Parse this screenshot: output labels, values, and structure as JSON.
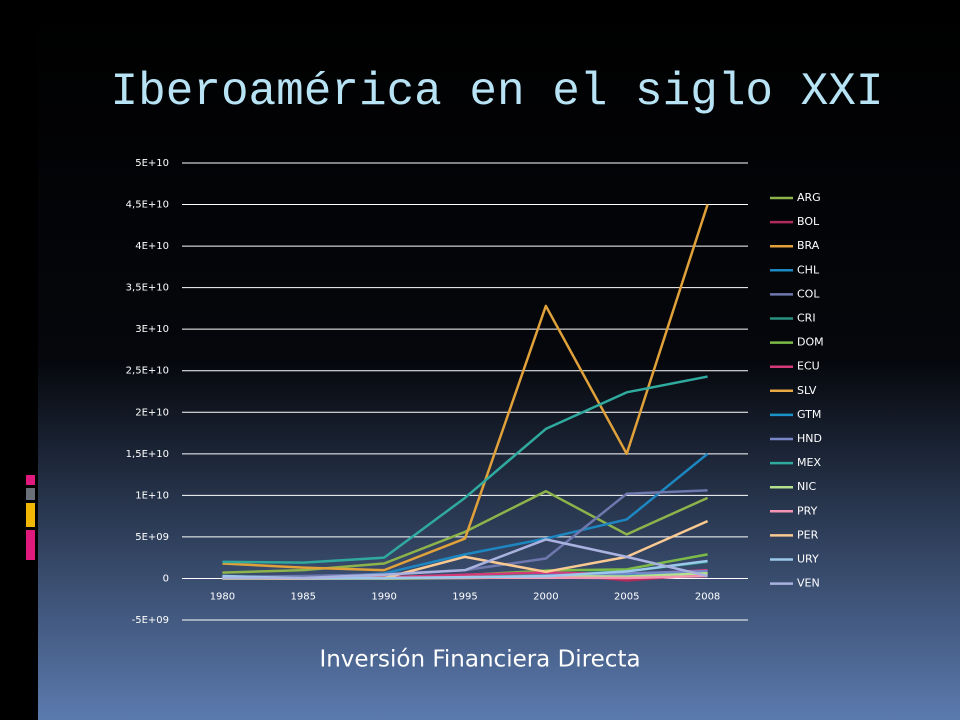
{
  "chart_data": {
    "type": "line",
    "title": "Iberoamérica en el siglo XXI",
    "caption": "Inversión Financiera Directa",
    "categories": [
      "1980",
      "1985",
      "1990",
      "1995",
      "2000",
      "2005",
      "2008"
    ],
    "ylim": [
      -5000000000.0,
      50000000000.0
    ],
    "yticks": [
      {
        "value": -5000000000.0,
        "label": "-5E+09"
      },
      0,
      {
        "value": 5000000000.0,
        "label": "5E+09"
      },
      {
        "value": 10000000000.0,
        "label": "1E+10"
      },
      {
        "value": 15000000000.0,
        "label": "1,5E+10"
      },
      {
        "value": 20000000000.0,
        "label": "2E+10"
      },
      {
        "value": 25000000000.0,
        "label": "2,5E+10"
      },
      {
        "value": 30000000000.0,
        "label": "3E+10"
      },
      {
        "value": 35000000000.0,
        "label": "3,5E+10"
      },
      {
        "value": 40000000000.0,
        "label": "4E+10"
      },
      {
        "value": 45000000000.0,
        "label": "4,5E+10"
      },
      {
        "value": 50000000000.0,
        "label": "5E+10"
      }
    ],
    "grid": true,
    "legend": "right",
    "series": [
      {
        "name": "ARG",
        "color": "#8db34b",
        "values": [
          700000000.0,
          1000000000.0,
          1800000000.0,
          5600000000.0,
          10500000000.0,
          5300000000.0,
          9700000000.0
        ]
      },
      {
        "name": "BOL",
        "color": "#b02a5c",
        "values": [
          20000000.0,
          10000000.0,
          30000000.0,
          400000000.0,
          700000000.0,
          -240000000.0,
          500000000.0
        ]
      },
      {
        "name": "BRA",
        "color": "#e0a13a",
        "values": [
          1800000000.0,
          1300000000.0,
          1000000000.0,
          4800000000.0,
          32800000000.0,
          15000000000.0,
          45000000000.0
        ]
      },
      {
        "name": "CHL",
        "color": "#1d87c2",
        "values": [
          200000000.0,
          100000000.0,
          600000000.0,
          2900000000.0,
          4800000000.0,
          7100000000.0,
          15000000000.0
        ]
      },
      {
        "name": "COL",
        "color": "#6e78ad",
        "values": [
          160000000.0,
          300000000.0,
          500000000.0,
          1000000000.0,
          2400000000.0,
          10200000000.0,
          10600000000.0
        ]
      },
      {
        "name": "CRI",
        "color": "#2a8f7e",
        "values": [
          53000000.0,
          70000000.0,
          160000000.0,
          340000000.0,
          410000000.0,
          860000000.0,
          2000000000.0
        ]
      },
      {
        "name": "DOM",
        "color": "#7cbb47",
        "values": [
          90000000.0,
          40000000.0,
          130000000.0,
          400000000.0,
          950000000.0,
          1100000000.0,
          2900000000.0
        ]
      },
      {
        "name": "ECU",
        "color": "#d43a78",
        "values": [
          70000000.0,
          60000000.0,
          130000000.0,
          450000000.0,
          720000000.0,
          490000000.0,
          1000000000.0
        ]
      },
      {
        "name": "SLV",
        "color": "#e8a844",
        "values": [
          6000000.0,
          12000000.0,
          2000000.0,
          38000000.0,
          170000000.0,
          500000000.0,
          800000000.0
        ]
      },
      {
        "name": "GTM",
        "color": "#1b93c9",
        "values": [
          110000000.0,
          60000000.0,
          50000000.0,
          80000000.0,
          230000000.0,
          510000000.0,
          750000000.0
        ]
      },
      {
        "name": "HND",
        "color": "#7886c7",
        "values": [
          6000000.0,
          28000000.0,
          44000000.0,
          50000000.0,
          380000000.0,
          600000000.0,
          900000000.0
        ]
      },
      {
        "name": "MEX",
        "color": "#30a99e",
        "values": [
          2000000000.0,
          1900000000.0,
          2500000000.0,
          9700000000.0,
          18000000000.0,
          22400000000.0,
          24300000000.0
        ]
      },
      {
        "name": "NIC",
        "color": "#b5e08d",
        "values": [
          0,
          0,
          0,
          90000000.0,
          270000000.0,
          240000000.0,
          630000000.0
        ]
      },
      {
        "name": "PRY",
        "color": "#f595b4",
        "values": [
          30000000.0,
          1000000.0,
          80000000.0,
          100000000.0,
          100000000.0,
          50000000.0,
          300000000.0
        ]
      },
      {
        "name": "PER",
        "color": "#fbc992",
        "values": [
          30000000.0,
          0,
          40000000.0,
          2600000000.0,
          800000000.0,
          2600000000.0,
          6900000000.0
        ]
      },
      {
        "name": "URY",
        "color": "#9cc8ec",
        "values": [
          290000000.0,
          30000000.0,
          40000000.0,
          160000000.0,
          270000000.0,
          850000000.0,
          2100000000.0
        ]
      },
      {
        "name": "VEN",
        "color": "#aab3e0",
        "values": [
          50000000.0,
          60000000.0,
          450000000.0,
          1000000000.0,
          4700000000.0,
          2600000000.0,
          300000000.0
        ]
      }
    ]
  }
}
